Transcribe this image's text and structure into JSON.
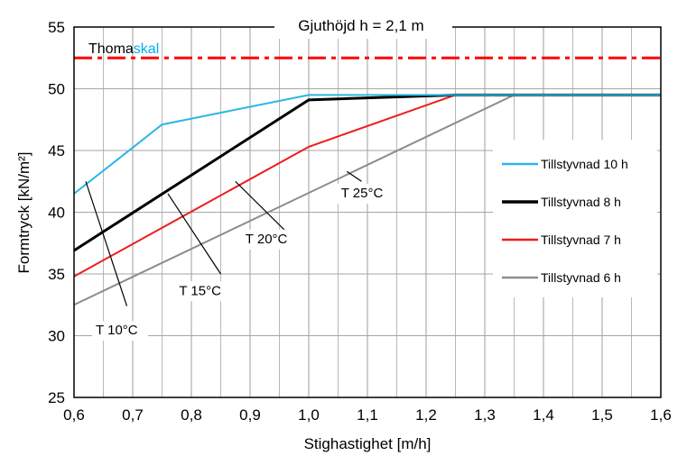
{
  "chart_data": {
    "type": "line",
    "title": "Gjuthöjd  h = 2,1 m",
    "xlabel": "Stighastighet [m/h]",
    "ylabel": "Formtryck [kN/m²]",
    "xlim": [
      0.6,
      1.6
    ],
    "ylim": [
      25,
      55
    ],
    "x_ticks": [
      0.6,
      0.7,
      0.8,
      0.9,
      1.0,
      1.1,
      1.2,
      1.3,
      1.4,
      1.5,
      1.6
    ],
    "x_tick_labels": [
      "0,6",
      "0,7",
      "0,8",
      "0,9",
      "1,0",
      "1,1",
      "1,2",
      "1,3",
      "1,4",
      "1,5",
      "1,6"
    ],
    "y_ticks": [
      25,
      30,
      35,
      40,
      45,
      50,
      55
    ],
    "y_tick_labels": [
      "25",
      "30",
      "35",
      "40",
      "45",
      "50",
      "55"
    ],
    "x_minor_step": 0.05,
    "grid": true,
    "legend_position": "right",
    "brand": {
      "part1": "Thoma",
      "part2": "skal",
      "color1": "#000000",
      "color2": "#00b0f0"
    },
    "reference_line": {
      "y": 52.5,
      "color": "#ff0000",
      "style": "dash-dot"
    },
    "series": [
      {
        "name": "Tillstyvnad 10 h",
        "color": "#2db5e8",
        "width": 2,
        "x": [
          0.6,
          0.75,
          1.0,
          1.6
        ],
        "y": [
          41.5,
          47.1,
          49.5,
          49.5
        ]
      },
      {
        "name": "Tillstyvnad 8 h",
        "color": "#000000",
        "width": 3,
        "x": [
          0.6,
          1.0,
          1.25,
          1.6
        ],
        "y": [
          36.9,
          49.1,
          49.5,
          49.5
        ]
      },
      {
        "name": "Tillstyvnad 7 h",
        "color": "#ee1c1c",
        "width": 2,
        "x": [
          0.6,
          1.0,
          1.25,
          1.6
        ],
        "y": [
          34.8,
          45.3,
          49.5,
          49.5
        ]
      },
      {
        "name": "Tillstyvnad 6 h",
        "color": "#8c8c8c",
        "width": 2,
        "x": [
          0.6,
          1.35,
          1.6
        ],
        "y": [
          32.5,
          49.5,
          49.5
        ]
      }
    ],
    "annotations": [
      {
        "text": "T 10°C",
        "label_x": 0.637,
        "label_y": 30.1,
        "line": [
          [
            0.62,
            42.5
          ],
          [
            0.69,
            32.4
          ]
        ]
      },
      {
        "text": "T 15°C",
        "label_x": 0.779,
        "label_y": 33.3,
        "line": [
          [
            0.76,
            41.5
          ],
          [
            0.85,
            35.0
          ]
        ]
      },
      {
        "text": "T 20°C",
        "label_x": 0.892,
        "label_y": 37.5,
        "line": [
          [
            0.875,
            42.5
          ],
          [
            0.96,
            38.5
          ]
        ]
      },
      {
        "text": "T 25°C",
        "label_x": 1.055,
        "label_y": 41.2,
        "line": [
          [
            1.065,
            43.3
          ],
          [
            1.09,
            42.5
          ]
        ]
      }
    ]
  }
}
